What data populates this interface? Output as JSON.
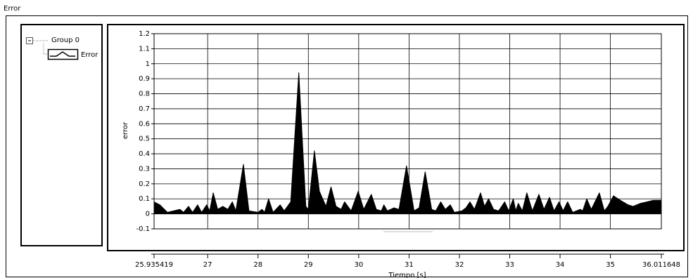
{
  "chart_data": {
    "type": "area",
    "title": "Error",
    "legend_group": "Group 0",
    "x_label": "Tiempo [s]",
    "y_label": "error",
    "x": [
      25.935419,
      26.05,
      26.2,
      26.45,
      26.52,
      26.62,
      26.7,
      26.8,
      26.88,
      26.98,
      27.04,
      27.11,
      27.2,
      27.3,
      27.4,
      27.49,
      27.56,
      27.71,
      27.82,
      28.0,
      28.08,
      28.13,
      28.21,
      28.3,
      28.44,
      28.52,
      28.65,
      28.81,
      28.95,
      29.0,
      29.12,
      29.22,
      29.35,
      29.45,
      29.55,
      29.65,
      29.72,
      29.85,
      29.99,
      30.1,
      30.25,
      30.35,
      30.45,
      30.5,
      30.57,
      30.7,
      30.8,
      30.95,
      31.1,
      31.2,
      31.32,
      31.45,
      31.53,
      31.63,
      31.72,
      31.82,
      31.9,
      32.05,
      32.13,
      32.21,
      32.3,
      32.42,
      32.5,
      32.58,
      32.68,
      32.78,
      32.9,
      32.98,
      33.07,
      33.12,
      33.17,
      33.25,
      33.34,
      33.45,
      33.58,
      33.68,
      33.79,
      33.88,
      33.98,
      34.06,
      34.15,
      34.25,
      34.4,
      34.45,
      34.53,
      34.62,
      34.78,
      34.88,
      34.95,
      35.06,
      35.2,
      35.35,
      35.45,
      35.6,
      35.73,
      35.85,
      36.011648
    ],
    "series": [
      {
        "name": "Error",
        "color": "#000000",
        "values": [
          0.08,
          0.06,
          0.01,
          0.03,
          0.01,
          0.05,
          0.01,
          0.06,
          0.01,
          0.06,
          0.02,
          0.14,
          0.03,
          0.05,
          0.03,
          0.08,
          0.02,
          0.33,
          0.02,
          0.01,
          0.03,
          0.01,
          0.1,
          0.01,
          0.06,
          0.02,
          0.08,
          0.94,
          0.05,
          0.03,
          0.42,
          0.15,
          0.05,
          0.18,
          0.05,
          0.03,
          0.08,
          0.02,
          0.15,
          0.03,
          0.13,
          0.03,
          0.02,
          0.06,
          0.02,
          0.04,
          0.03,
          0.32,
          0.02,
          0.04,
          0.28,
          0.03,
          0.02,
          0.08,
          0.03,
          0.06,
          0.01,
          0.02,
          0.04,
          0.08,
          0.03,
          0.14,
          0.05,
          0.1,
          0.03,
          0.02,
          0.08,
          0.02,
          0.1,
          0.02,
          0.07,
          0.02,
          0.14,
          0.02,
          0.13,
          0.03,
          0.11,
          0.02,
          0.08,
          0.02,
          0.08,
          0.01,
          0.03,
          0.02,
          0.1,
          0.03,
          0.14,
          0.02,
          0.05,
          0.12,
          0.09,
          0.06,
          0.05,
          0.07,
          0.08,
          0.09,
          0.09
        ]
      }
    ],
    "xlim": [
      25.935419,
      36.011648
    ],
    "xticks": [
      25.935419,
      27,
      28,
      29,
      30,
      31,
      32,
      33,
      34,
      35,
      36.011648
    ],
    "ylim": [
      -0.1,
      1.2
    ],
    "yticks": [
      1.2,
      1.1,
      1,
      0.9,
      0.8,
      0.7,
      0.6,
      0.5,
      0.4,
      0.3,
      0.2,
      0.1,
      0,
      -0.1
    ],
    "grid": true
  }
}
